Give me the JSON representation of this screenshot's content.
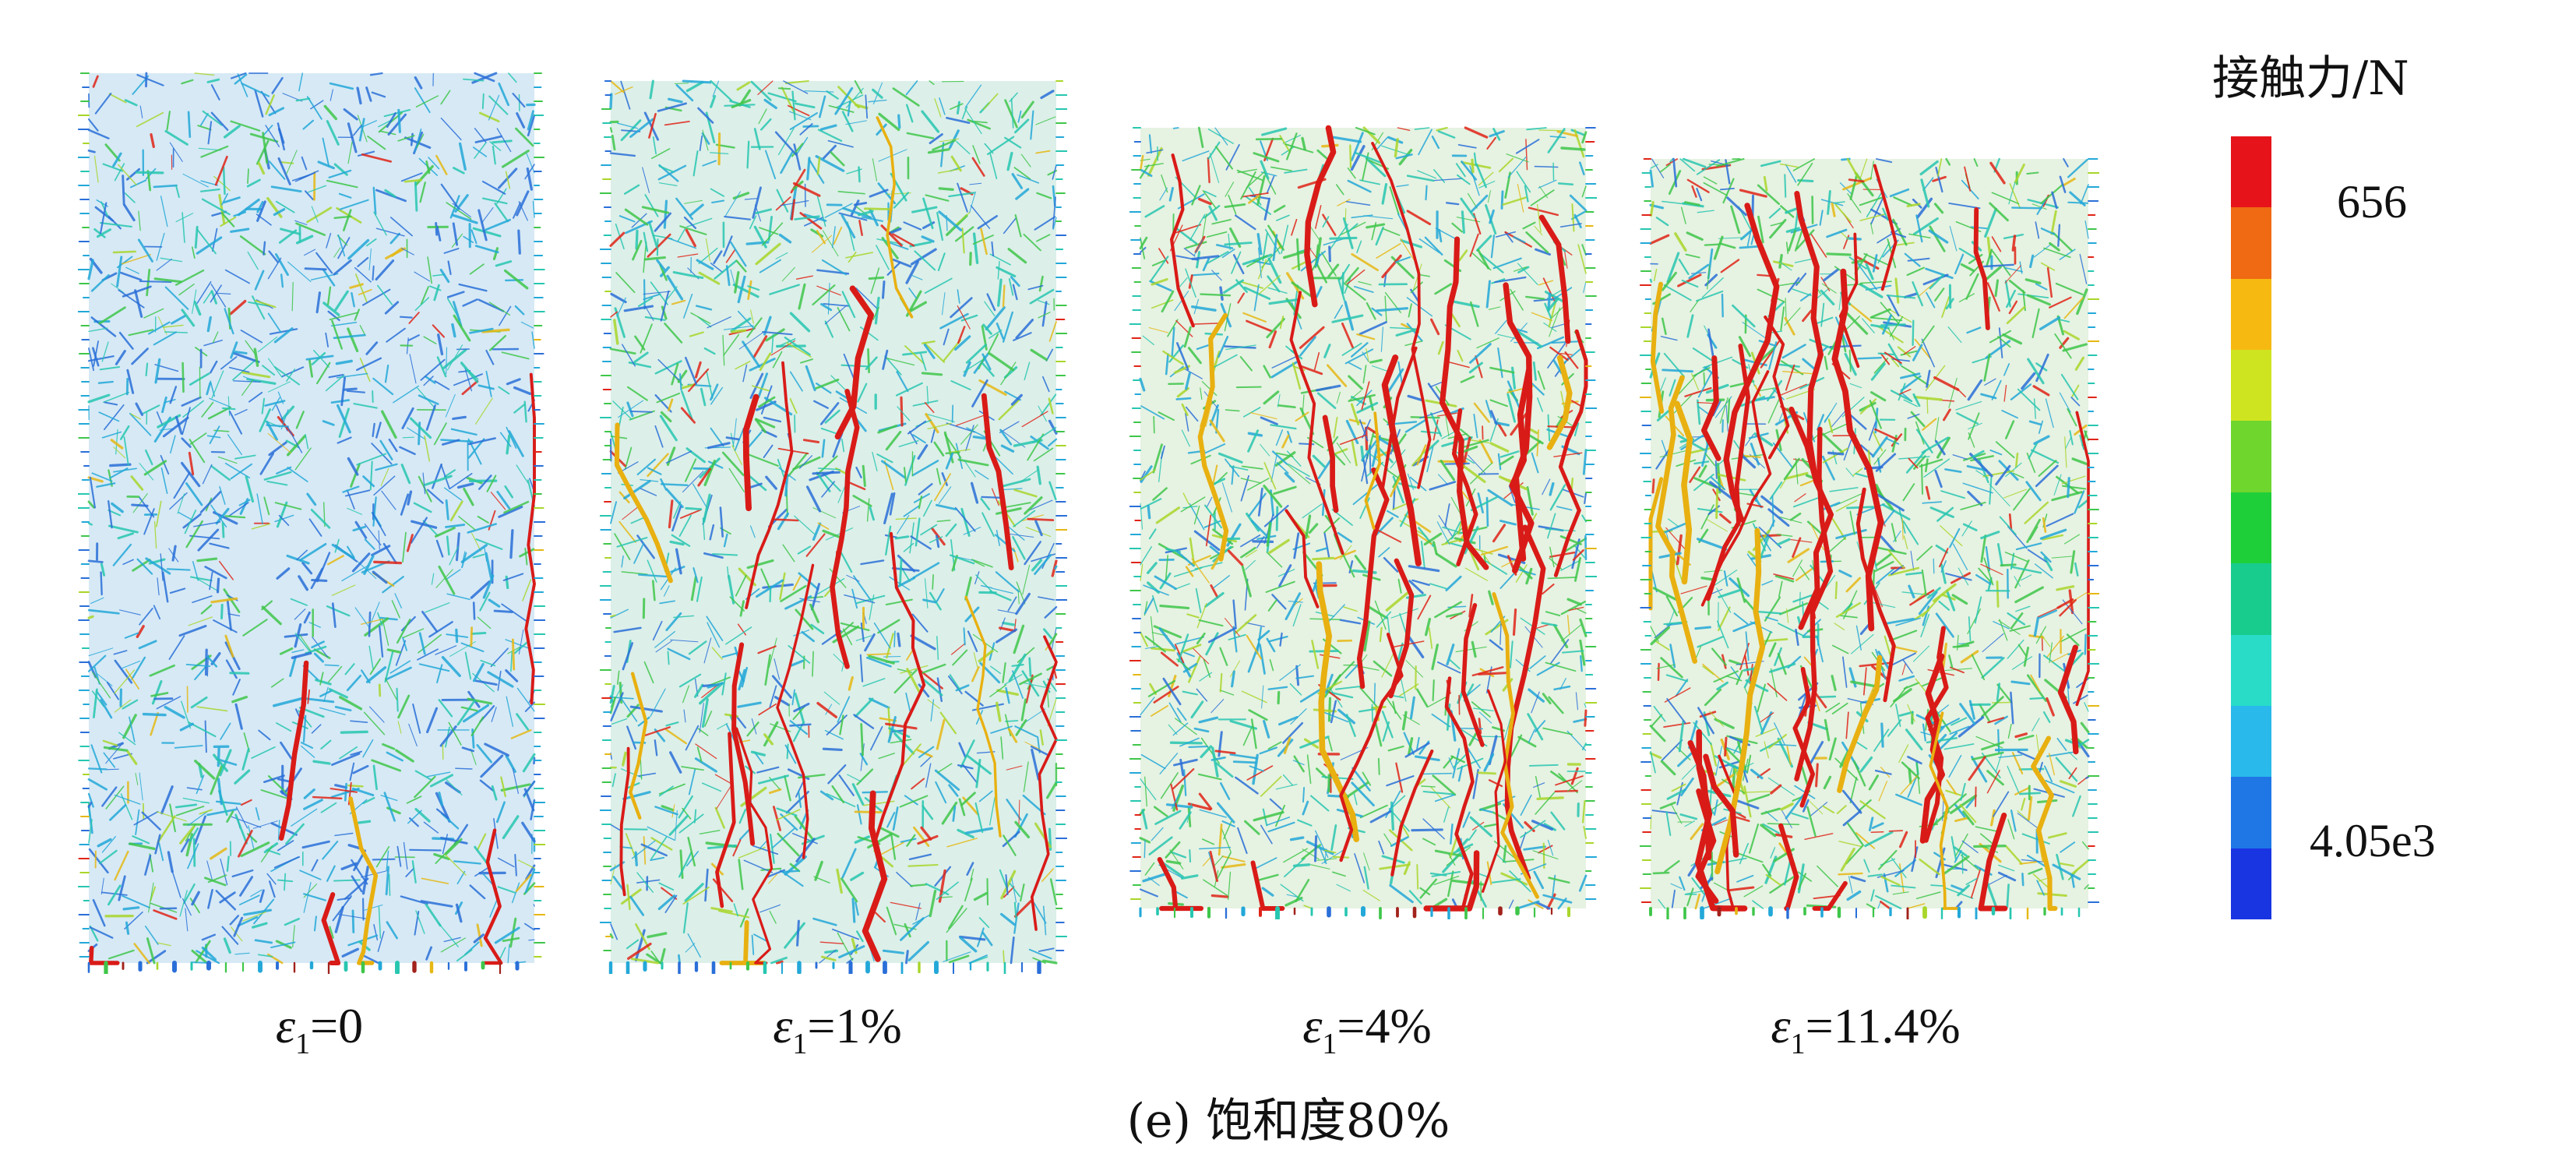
{
  "panels": [
    {
      "symbol": "ε",
      "subscript": "1",
      "value": "=0"
    },
    {
      "symbol": "ε",
      "subscript": "1",
      "value": "=1%"
    },
    {
      "symbol": "ε",
      "subscript": "1",
      "value": "=4%"
    },
    {
      "symbol": "ε",
      "subscript": "1",
      "value": "=11.4%"
    }
  ],
  "caption": "(e) 饱和度80%",
  "legend": {
    "title": "接触力/N",
    "max_label": "656",
    "min_label": "4.05e3",
    "colors": [
      "#e6131a",
      "#ef6a12",
      "#f6b912",
      "#cfe420",
      "#6fd62e",
      "#1fcf3a",
      "#18cc8e",
      "#28dcc8",
      "#29b9ea",
      "#1f77e6",
      "#1935e2"
    ]
  }
}
